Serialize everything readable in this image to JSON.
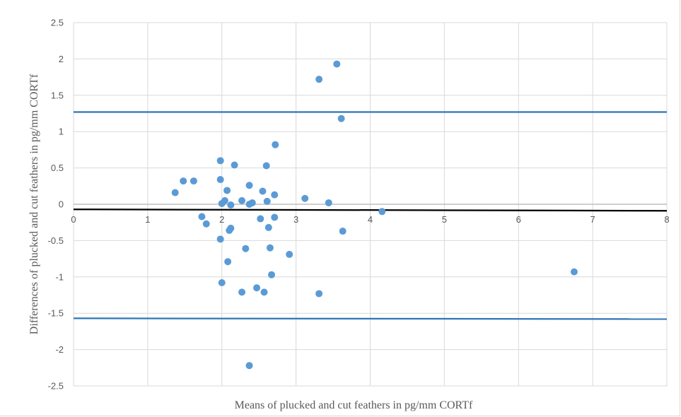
{
  "chart_data": {
    "type": "scatter",
    "xlabel": "Means of plucked and cut feathers in pg/mm CORTf",
    "ylabel": "Differences of plucked and cut feathers in pg/mm CORTf",
    "xlim": [
      0,
      8
    ],
    "ylim": [
      -2.5,
      2.5
    ],
    "x_ticks": [
      "0",
      "1",
      "2",
      "3",
      "4",
      "5",
      "6",
      "7",
      "8"
    ],
    "y_ticks": [
      "2.5",
      "2",
      "1.5",
      "1",
      "0.5",
      "0",
      "-0.5",
      "-1",
      "-1.5",
      "-2",
      "-2.5"
    ],
    "grid": true,
    "colors": {
      "points": "#5b9bd5",
      "limits": "#2e75b6",
      "mean_line": "#000000",
      "grid": "#d9d9d9",
      "zero_line": "#bfbfbf"
    },
    "reference_lines": [
      {
        "kind": "upper-limit",
        "y_start": 1.27,
        "y_end": 1.27
      },
      {
        "kind": "lower-limit",
        "y_start": -1.57,
        "y_end": -1.58
      },
      {
        "kind": "mean-difference",
        "y_start": -0.07,
        "y_end": -0.09
      }
    ],
    "points": [
      {
        "x": 1.37,
        "y": 0.16
      },
      {
        "x": 1.48,
        "y": 0.32
      },
      {
        "x": 1.62,
        "y": 0.32
      },
      {
        "x": 1.73,
        "y": -0.17
      },
      {
        "x": 1.79,
        "y": -0.27
      },
      {
        "x": 1.98,
        "y": 0.6
      },
      {
        "x": 1.98,
        "y": 0.34
      },
      {
        "x": 2.0,
        "y": 0.01
      },
      {
        "x": 1.98,
        "y": -0.48
      },
      {
        "x": 2.0,
        "y": -1.08
      },
      {
        "x": 2.04,
        "y": 0.05
      },
      {
        "x": 2.07,
        "y": 0.19
      },
      {
        "x": 2.12,
        "y": -0.01
      },
      {
        "x": 2.1,
        "y": -0.36
      },
      {
        "x": 2.12,
        "y": -0.33
      },
      {
        "x": 2.08,
        "y": -0.79
      },
      {
        "x": 2.17,
        "y": 0.54
      },
      {
        "x": 2.27,
        "y": 0.05
      },
      {
        "x": 2.32,
        "y": -0.61
      },
      {
        "x": 2.27,
        "y": -1.21
      },
      {
        "x": 2.37,
        "y": 0.26
      },
      {
        "x": 2.37,
        "y": 0.0
      },
      {
        "x": 2.41,
        "y": 0.02
      },
      {
        "x": 2.37,
        "y": -2.22
      },
      {
        "x": 2.47,
        "y": -1.15
      },
      {
        "x": 2.52,
        "y": -0.2
      },
      {
        "x": 2.55,
        "y": 0.18
      },
      {
        "x": 2.57,
        "y": -1.21
      },
      {
        "x": 2.6,
        "y": 0.53
      },
      {
        "x": 2.61,
        "y": 0.04
      },
      {
        "x": 2.63,
        "y": -0.32
      },
      {
        "x": 2.65,
        "y": -0.6
      },
      {
        "x": 2.67,
        "y": -0.97
      },
      {
        "x": 2.72,
        "y": 0.82
      },
      {
        "x": 2.71,
        "y": 0.13
      },
      {
        "x": 2.71,
        "y": -0.18
      },
      {
        "x": 2.91,
        "y": -0.69
      },
      {
        "x": 3.12,
        "y": 0.08
      },
      {
        "x": 3.31,
        "y": 1.72
      },
      {
        "x": 3.31,
        "y": -1.23
      },
      {
        "x": 3.44,
        "y": 0.02
      },
      {
        "x": 3.55,
        "y": 1.93
      },
      {
        "x": 3.61,
        "y": 1.18
      },
      {
        "x": 3.63,
        "y": -0.37
      },
      {
        "x": 4.16,
        "y": -0.1
      },
      {
        "x": 6.75,
        "y": -0.93
      }
    ]
  }
}
